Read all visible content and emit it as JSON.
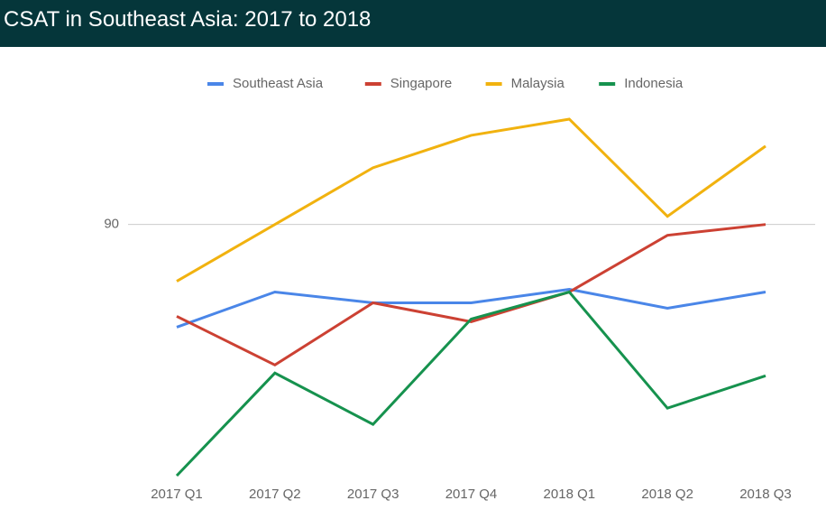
{
  "chart_data": {
    "type": "line",
    "title": "CSAT in Southeast Asia: 2017 to 2018",
    "categories": [
      "2017 Q1",
      "2017 Q2",
      "2017 Q3",
      "2017 Q4",
      "2018 Q1",
      "2018 Q2",
      "2018 Q3"
    ],
    "series": [
      {
        "name": "Southeast Asia",
        "color": "#4a86e8",
        "values": [
          86.2,
          87.5,
          87.1,
          87.1,
          87.6,
          86.9,
          87.5
        ]
      },
      {
        "name": "Singapore",
        "color": "#cc4133",
        "values": [
          86.6,
          84.8,
          87.1,
          86.4,
          87.5,
          89.6,
          90
        ]
      },
      {
        "name": "Malaysia",
        "color": "#f1b20f",
        "values": [
          87.9,
          90,
          92.1,
          93.3,
          93.9,
          90.3,
          92.9
        ]
      },
      {
        "name": "Indonesia",
        "color": "#16924e",
        "values": [
          80.7,
          84.5,
          82.6,
          86.5,
          87.5,
          83.2,
          84.4
        ]
      }
    ],
    "ylim": [
      80.7,
      94.3
    ],
    "yticks": [
      90
    ],
    "grid": true,
    "legend": "top"
  }
}
